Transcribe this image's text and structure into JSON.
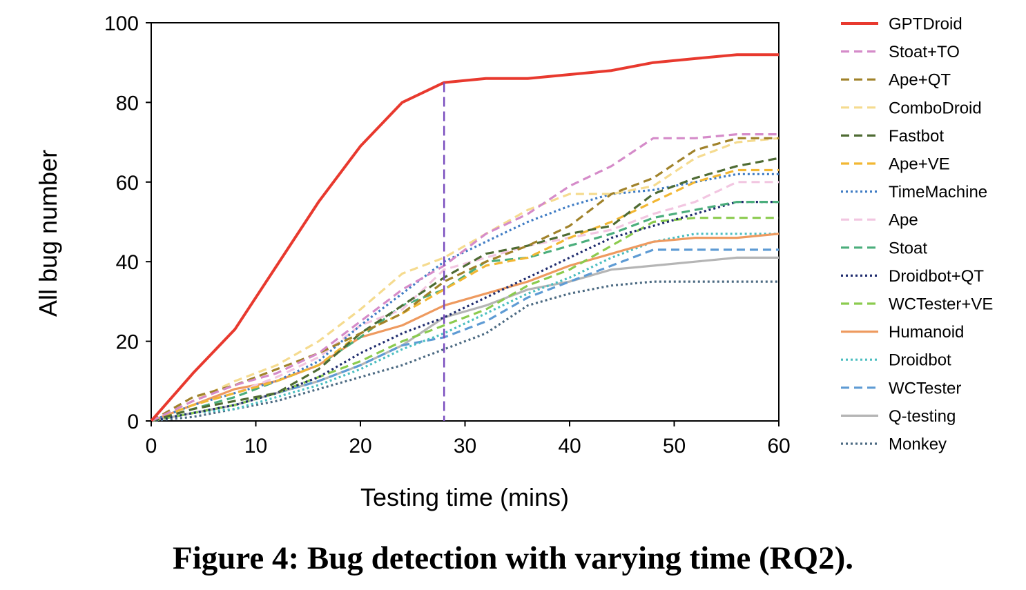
{
  "caption": "Figure 4: Bug detection with varying time (RQ2).",
  "chart_data": {
    "type": "line",
    "xlabel": "Testing time (mins)",
    "ylabel": "All bug number",
    "xlim": [
      0,
      60
    ],
    "ylim": [
      0,
      100
    ],
    "xticks": [
      0,
      10,
      20,
      30,
      40,
      50,
      60
    ],
    "yticks": [
      0,
      20,
      40,
      60,
      80,
      100
    ],
    "grid": false,
    "legend_position": "right",
    "annotations": [
      {
        "type": "vertical-dashed-line",
        "x": 28,
        "color": "#7B4FBF"
      }
    ],
    "x": [
      0,
      4,
      8,
      12,
      16,
      20,
      24,
      28,
      32,
      36,
      40,
      44,
      48,
      52,
      56,
      60
    ],
    "series": [
      {
        "name": "GPTDroid",
        "color": "#E8392E",
        "style": "solid",
        "values": [
          0,
          12,
          23,
          39,
          55,
          69,
          80,
          85,
          86,
          86,
          87,
          88,
          90,
          91,
          92,
          92
        ]
      },
      {
        "name": "Stoat+TO",
        "color": "#D58BC9",
        "style": "dashed",
        "values": [
          0,
          5,
          9,
          12,
          17,
          25,
          33,
          39,
          47,
          52,
          59,
          64,
          71,
          71,
          72,
          72
        ]
      },
      {
        "name": "Ape+QT",
        "color": "#A0822A",
        "style": "dashed",
        "values": [
          0,
          6,
          9,
          13,
          17,
          22,
          27,
          35,
          40,
          44,
          49,
          57,
          61,
          68,
          71,
          71
        ]
      },
      {
        "name": "ComboDroid",
        "color": "#F5DB8F",
        "style": "dashed",
        "values": [
          0,
          5,
          10,
          14,
          20,
          28,
          37,
          41,
          47,
          53,
          57,
          57,
          59,
          66,
          70,
          71
        ]
      },
      {
        "name": "Fastbot",
        "color": "#4E6B33",
        "style": "dashed",
        "values": [
          0,
          3,
          5,
          7,
          13,
          22,
          29,
          36,
          42,
          44,
          47,
          49,
          57,
          61,
          64,
          66
        ]
      },
      {
        "name": "Ape+VE",
        "color": "#F2B733",
        "style": "dashed",
        "values": [
          0,
          4,
          7,
          10,
          14,
          22,
          27,
          33,
          39,
          41,
          46,
          50,
          55,
          60,
          63,
          63
        ]
      },
      {
        "name": "TimeMachine",
        "color": "#3F7CC4",
        "style": "dotted",
        "values": [
          0,
          4,
          7,
          10,
          15,
          24,
          32,
          40,
          45,
          50,
          54,
          57,
          58,
          60,
          62,
          62
        ]
      },
      {
        "name": "Ape",
        "color": "#F2C6E1",
        "style": "dashed",
        "values": [
          0,
          4,
          7,
          11,
          16,
          24,
          28,
          38,
          41,
          44,
          46,
          48,
          52,
          55,
          60,
          60
        ]
      },
      {
        "name": "Stoat",
        "color": "#4BAE7C",
        "style": "dashed",
        "values": [
          0,
          3,
          6,
          10,
          14,
          21,
          29,
          33,
          40,
          41,
          44,
          47,
          51,
          53,
          55,
          55
        ]
      },
      {
        "name": "Droidbot+QT",
        "color": "#1F2C6E",
        "style": "dotted",
        "values": [
          0,
          2,
          4,
          7,
          11,
          17,
          22,
          26,
          31,
          36,
          41,
          46,
          49,
          52,
          55,
          55
        ]
      },
      {
        "name": "WCTester+VE",
        "color": "#8BCB4E",
        "style": "dashed",
        "values": [
          0,
          2,
          4,
          7,
          11,
          15,
          20,
          24,
          28,
          34,
          38,
          44,
          50,
          51,
          51,
          51
        ]
      },
      {
        "name": "Humanoid",
        "color": "#EE9A5F",
        "style": "solid",
        "values": [
          0,
          4,
          8,
          10,
          14,
          21,
          24,
          29,
          32,
          35,
          39,
          42,
          45,
          46,
          46,
          47
        ]
      },
      {
        "name": "Droidbot",
        "color": "#4BBEC0",
        "style": "dotted",
        "values": [
          0,
          2,
          3,
          6,
          9,
          13,
          18,
          22,
          27,
          32,
          36,
          41,
          45,
          47,
          47,
          47
        ]
      },
      {
        "name": "WCTester",
        "color": "#5E9BD4",
        "style": "dashed",
        "values": [
          0,
          2,
          4,
          7,
          10,
          14,
          19,
          21,
          25,
          31,
          35,
          39,
          43,
          43,
          43,
          43
        ]
      },
      {
        "name": "Q-testing",
        "color": "#B5B5B5",
        "style": "solid",
        "values": [
          0,
          2,
          4,
          7,
          10,
          14,
          19,
          26,
          29,
          33,
          35,
          38,
          39,
          40,
          41,
          41
        ]
      },
      {
        "name": "Monkey",
        "color": "#4C6A82",
        "style": "dotted",
        "values": [
          0,
          1,
          3,
          5,
          8,
          11,
          14,
          18,
          22,
          29,
          32,
          34,
          35,
          35,
          35,
          35
        ]
      }
    ]
  }
}
